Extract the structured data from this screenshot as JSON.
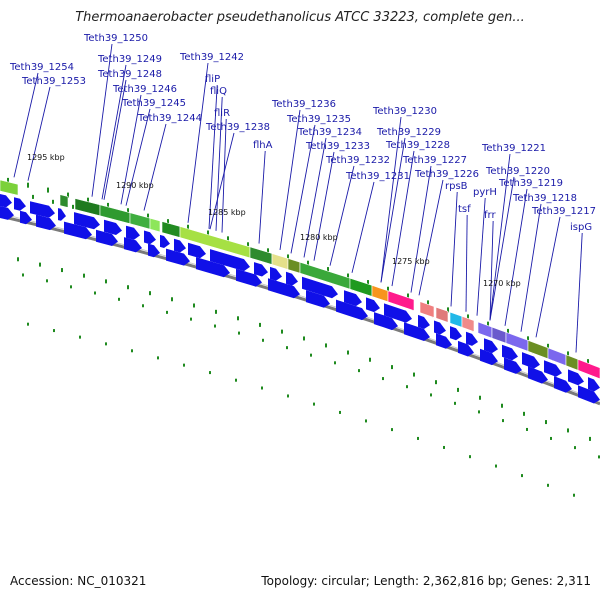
{
  "title": "Thermoanaerobacter pseudethanolicus ATCC 33223, complete gen...",
  "footer": {
    "accession": "Accession: NC_010321",
    "topology": "Topology: circular; Length: 2,362,816 bp; Genes: 2,311"
  },
  "scale_labels": [
    "1295 kbp",
    "1290 kbp",
    "1285 kbp",
    "1280 kbp",
    "1275 kbp",
    "1270 kbp"
  ],
  "gene_labels": [
    "Teth39_1254",
    "Teth39_1253",
    "Teth39_1250",
    "Teth39_1249",
    "Teth39_1248",
    "Teth39_1246",
    "Teth39_1245",
    "Teth39_1244",
    "Teth39_1242",
    "fliP",
    "fliQ",
    "fliR",
    "Teth39_1238",
    "flhA",
    "Teth39_1236",
    "Teth39_1235",
    "Teth39_1234",
    "Teth39_1233",
    "Teth39_1232",
    "Teth39_1231",
    "Teth39_1230",
    "Teth39_1229",
    "Teth39_1228",
    "Teth39_1227",
    "Teth39_1226",
    "rpsB",
    "tsf",
    "pyrH",
    "frr",
    "Teth39_1221",
    "Teth39_1220",
    "Teth39_1219",
    "Teth39_1218",
    "Teth39_1217",
    "ispG"
  ],
  "colors": {
    "gene_arrow": "#1010e8",
    "backbone": "#7a7a7a",
    "tick": "#1e8a1e",
    "label": "#1a1aa8"
  }
}
